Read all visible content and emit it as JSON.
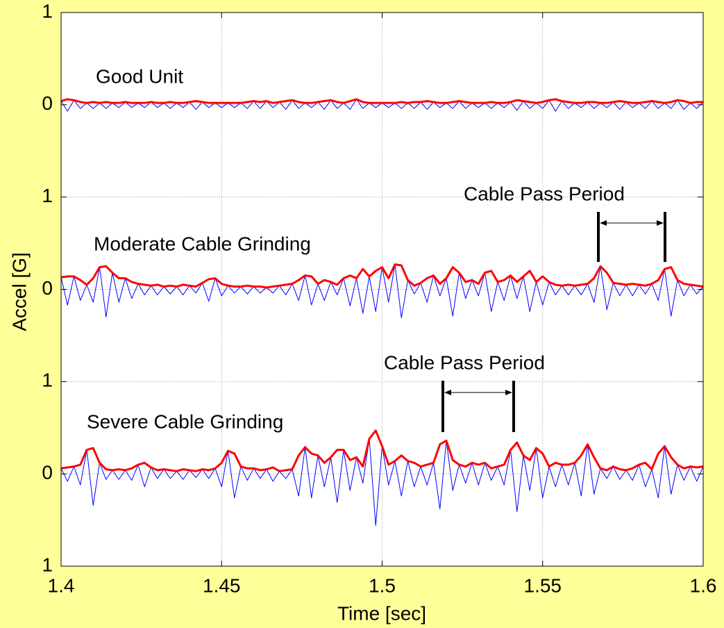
{
  "chart_data": {
    "type": "line",
    "xlabel": "Time [sec]",
    "ylabel": "Accel [G]",
    "xlim": [
      1.4,
      1.6
    ],
    "xticks": [
      1.4,
      1.45,
      1.5,
      1.55,
      1.6
    ],
    "ylim": [
      0,
      6
    ],
    "yticks": [
      {
        "value": 0,
        "label": "1"
      },
      {
        "value": 1,
        "label": "0"
      },
      {
        "value": 2,
        "label": "1"
      },
      {
        "value": 3,
        "label": "0"
      },
      {
        "value": 4,
        "label": "1"
      },
      {
        "value": 5,
        "label": "0"
      },
      {
        "value": 6,
        "label": "1"
      }
    ],
    "grid": true,
    "annotations": [
      "Good Unit",
      "Moderate Cable Grinding",
      "Severe Cable Grinding",
      "Cable Pass Period",
      "Cable Pass Period"
    ],
    "x": [
      1.4,
      1.402,
      1.404,
      1.406,
      1.408,
      1.41,
      1.412,
      1.414,
      1.416,
      1.418,
      1.42,
      1.422,
      1.424,
      1.426,
      1.428,
      1.43,
      1.432,
      1.434,
      1.436,
      1.438,
      1.44,
      1.442,
      1.444,
      1.446,
      1.448,
      1.45,
      1.452,
      1.454,
      1.456,
      1.458,
      1.46,
      1.462,
      1.464,
      1.466,
      1.468,
      1.47,
      1.472,
      1.474,
      1.476,
      1.478,
      1.48,
      1.482,
      1.484,
      1.486,
      1.488,
      1.49,
      1.492,
      1.494,
      1.496,
      1.498,
      1.5,
      1.502,
      1.504,
      1.506,
      1.508,
      1.51,
      1.512,
      1.514,
      1.516,
      1.518,
      1.52,
      1.522,
      1.524,
      1.526,
      1.528,
      1.53,
      1.532,
      1.534,
      1.536,
      1.538,
      1.54,
      1.542,
      1.544,
      1.546,
      1.548,
      1.55,
      1.552,
      1.554,
      1.556,
      1.558,
      1.56,
      1.562,
      1.564,
      1.566,
      1.568,
      1.57,
      1.572,
      1.574,
      1.576,
      1.578,
      1.58,
      1.582,
      1.584,
      1.586,
      1.588,
      1.59,
      1.592,
      1.594,
      1.596,
      1.598,
      1.6
    ],
    "series": [
      {
        "color": "#0000ff",
        "width": 1,
        "values": [
          5.04,
          4.93,
          5.05,
          4.96,
          5.02,
          4.96,
          5.02,
          4.96,
          5.02,
          4.97,
          5.03,
          4.97,
          5.02,
          4.97,
          5.03,
          4.97,
          5.02,
          4.96,
          5.02,
          4.97,
          5.03,
          4.95,
          5.03,
          4.97,
          5.02,
          4.97,
          5.02,
          4.97,
          5.02,
          4.96,
          5.04,
          4.96,
          5.04,
          4.97,
          5.03,
          4.95,
          5.05,
          4.96,
          5.02,
          4.97,
          5.03,
          4.95,
          5.05,
          4.96,
          5.02,
          4.95,
          5.06,
          4.96,
          5.02,
          4.97,
          5.02,
          4.97,
          5.02,
          4.96,
          5.02,
          4.96,
          5.03,
          4.95,
          5.03,
          4.97,
          5.02,
          4.96,
          5.04,
          4.96,
          5.02,
          4.97,
          5.02,
          4.96,
          5.02,
          4.97,
          5.03,
          4.94,
          5.04,
          4.96,
          5.02,
          4.96,
          5.05,
          4.93,
          5.04,
          4.96,
          5.02,
          4.97,
          5.03,
          4.96,
          5.02,
          4.97,
          5.03,
          4.95,
          5.03,
          4.97,
          5.02,
          4.96,
          5.04,
          4.96,
          5.02,
          4.96,
          5.05,
          4.95,
          5.02,
          4.96,
          5.03
        ]
      },
      {
        "color": "#ff0000",
        "width": 3,
        "values": [
          5.04,
          5.06,
          5.05,
          5.03,
          5.02,
          5.03,
          5.02,
          5.03,
          5.02,
          5.02,
          5.03,
          5.02,
          5.02,
          5.02,
          5.03,
          5.02,
          5.02,
          5.03,
          5.02,
          5.02,
          5.03,
          5.04,
          5.03,
          5.02,
          5.02,
          5.02,
          5.02,
          5.02,
          5.02,
          5.03,
          5.04,
          5.03,
          5.04,
          5.02,
          5.03,
          5.04,
          5.05,
          5.03,
          5.02,
          5.02,
          5.03,
          5.04,
          5.05,
          5.03,
          5.02,
          5.04,
          5.06,
          5.03,
          5.02,
          5.02,
          5.02,
          5.02,
          5.02,
          5.03,
          5.02,
          5.03,
          5.03,
          5.04,
          5.03,
          5.02,
          5.02,
          5.03,
          5.04,
          5.03,
          5.02,
          5.02,
          5.02,
          5.03,
          5.02,
          5.02,
          5.03,
          5.05,
          5.04,
          5.03,
          5.02,
          5.03,
          5.05,
          5.06,
          5.04,
          5.03,
          5.02,
          5.02,
          5.03,
          5.03,
          5.02,
          5.02,
          5.03,
          5.04,
          5.03,
          5.02,
          5.02,
          5.03,
          5.04,
          5.03,
          5.02,
          5.03,
          5.05,
          5.04,
          5.02,
          5.03,
          5.03
        ]
      },
      {
        "color": "#0000ff",
        "width": 1,
        "values": [
          3.13,
          2.83,
          3.14,
          2.88,
          3.05,
          2.86,
          3.24,
          2.7,
          3.18,
          2.86,
          3.12,
          2.9,
          3.06,
          2.94,
          3.04,
          2.94,
          3.03,
          2.95,
          3.03,
          2.94,
          3.04,
          2.96,
          3.07,
          2.87,
          3.12,
          2.93,
          3.04,
          2.96,
          3.03,
          2.95,
          3.03,
          2.96,
          3.02,
          2.96,
          3.04,
          2.94,
          3.06,
          2.88,
          3.15,
          2.83,
          3.06,
          2.88,
          3.08,
          2.94,
          3.12,
          2.82,
          3.12,
          2.74,
          3.14,
          2.76,
          3.24,
          2.86,
          3.27,
          2.69,
          3.1,
          2.95,
          3.07,
          2.86,
          3.15,
          2.93,
          3.12,
          2.71,
          3.18,
          2.9,
          3.1,
          2.93,
          3.18,
          2.76,
          3.08,
          2.88,
          3.15,
          2.9,
          3.14,
          2.76,
          3.08,
          2.83,
          3.08,
          2.94,
          3.04,
          2.94,
          3.04,
          2.94,
          3.06,
          2.86,
          3.25,
          2.78,
          3.07,
          2.93,
          3.05,
          2.93,
          3.05,
          2.95,
          3.06,
          2.88,
          3.22,
          2.71,
          3.1,
          2.93,
          3.05,
          2.95,
          3.03
        ]
      },
      {
        "color": "#ff0000",
        "width": 3,
        "values": [
          3.13,
          3.14,
          3.14,
          3.1,
          3.05,
          3.12,
          3.24,
          3.25,
          3.18,
          3.12,
          3.12,
          3.08,
          3.06,
          3.05,
          3.04,
          3.05,
          3.03,
          3.04,
          3.03,
          3.05,
          3.04,
          3.03,
          3.07,
          3.11,
          3.12,
          3.06,
          3.04,
          3.03,
          3.03,
          3.04,
          3.03,
          3.03,
          3.02,
          3.03,
          3.04,
          3.05,
          3.06,
          3.1,
          3.15,
          3.14,
          3.06,
          3.1,
          3.08,
          3.05,
          3.12,
          3.15,
          3.12,
          3.22,
          3.14,
          3.2,
          3.24,
          3.12,
          3.27,
          3.26,
          3.1,
          3.04,
          3.07,
          3.12,
          3.15,
          3.06,
          3.12,
          3.24,
          3.18,
          3.08,
          3.1,
          3.06,
          3.18,
          3.2,
          3.08,
          3.1,
          3.15,
          3.08,
          3.14,
          3.2,
          3.08,
          3.14,
          3.08,
          3.05,
          3.04,
          3.05,
          3.04,
          3.05,
          3.06,
          3.12,
          3.25,
          3.18,
          3.07,
          3.06,
          3.05,
          3.06,
          3.05,
          3.04,
          3.06,
          3.1,
          3.22,
          3.24,
          3.1,
          3.06,
          3.05,
          3.04,
          3.03
        ]
      },
      {
        "color": "#0000ff",
        "width": 1,
        "values": [
          1.06,
          0.92,
          1.08,
          0.88,
          1.26,
          0.66,
          1.12,
          0.94,
          1.04,
          0.94,
          1.04,
          0.93,
          1.1,
          0.86,
          1.07,
          0.95,
          1.05,
          0.95,
          1.03,
          0.94,
          1.04,
          0.96,
          1.05,
          0.95,
          1.06,
          0.86,
          1.25,
          0.74,
          1.08,
          0.93,
          1.06,
          0.95,
          1.05,
          0.92,
          1.03,
          0.95,
          1.05,
          0.76,
          1.29,
          0.74,
          1.2,
          0.86,
          1.18,
          0.69,
          1.26,
          0.82,
          1.18,
          0.9,
          1.38,
          0.44,
          1.3,
          0.88,
          1.14,
          0.76,
          1.14,
          0.86,
          1.08,
          0.88,
          1.12,
          0.62,
          1.36,
          0.82,
          1.1,
          0.9,
          1.12,
          0.88,
          1.12,
          0.93,
          1.08,
          0.88,
          1.26,
          0.59,
          1.2,
          0.82,
          1.28,
          0.74,
          1.08,
          0.86,
          1.1,
          0.88,
          1.12,
          0.76,
          1.32,
          0.78,
          1.06,
          0.95,
          1.08,
          0.94,
          1.04,
          0.93,
          1.1,
          0.86,
          1.05,
          0.74,
          1.3,
          0.78,
          1.1,
          0.93,
          1.08,
          0.92,
          1.08
        ]
      },
      {
        "color": "#ff0000",
        "width": 3,
        "values": [
          1.06,
          1.07,
          1.08,
          1.1,
          1.26,
          1.28,
          1.12,
          1.05,
          1.04,
          1.05,
          1.04,
          1.06,
          1.1,
          1.12,
          1.07,
          1.04,
          1.05,
          1.04,
          1.03,
          1.05,
          1.04,
          1.03,
          1.05,
          1.04,
          1.06,
          1.12,
          1.25,
          1.22,
          1.08,
          1.06,
          1.06,
          1.04,
          1.05,
          1.07,
          1.03,
          1.04,
          1.05,
          1.2,
          1.29,
          1.22,
          1.2,
          1.12,
          1.18,
          1.26,
          1.26,
          1.15,
          1.18,
          1.08,
          1.38,
          1.47,
          1.3,
          1.1,
          1.14,
          1.2,
          1.14,
          1.12,
          1.08,
          1.1,
          1.12,
          1.32,
          1.36,
          1.15,
          1.1,
          1.08,
          1.12,
          1.1,
          1.12,
          1.06,
          1.08,
          1.1,
          1.26,
          1.34,
          1.2,
          1.15,
          1.28,
          1.22,
          1.08,
          1.12,
          1.1,
          1.1,
          1.12,
          1.2,
          1.32,
          1.18,
          1.06,
          1.04,
          1.08,
          1.05,
          1.04,
          1.06,
          1.1,
          1.12,
          1.05,
          1.22,
          1.3,
          1.18,
          1.1,
          1.06,
          1.08,
          1.07,
          1.08
        ]
      }
    ]
  }
}
